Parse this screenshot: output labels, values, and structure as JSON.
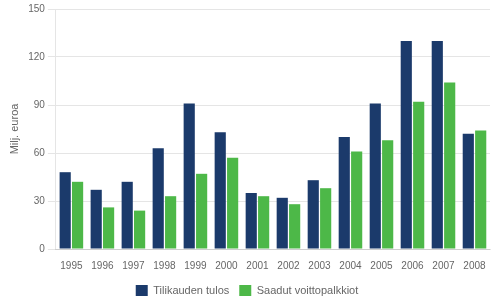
{
  "chart_data": {
    "type": "bar",
    "ylabel": "Milj. euroa",
    "categories": [
      "1995",
      "1996",
      "1997",
      "1998",
      "1999",
      "2000",
      "2001",
      "2002",
      "2003",
      "2004",
      "2005",
      "2006",
      "2007",
      "2008"
    ],
    "series": [
      {
        "name": "Tilikauden tulos",
        "color": "#1b3a6b",
        "values": [
          48,
          37,
          42,
          63,
          91,
          73,
          35,
          32,
          43,
          70,
          91,
          130,
          130,
          72
        ]
      },
      {
        "name": "Saadut voittopalkkiot",
        "color": "#4db848",
        "values": [
          42,
          26,
          24,
          33,
          47,
          57,
          33,
          28,
          38,
          61,
          68,
          92,
          104,
          74
        ]
      }
    ],
    "ylim": [
      0,
      150
    ],
    "yticks": [
      0,
      30,
      60,
      90,
      120,
      150
    ],
    "grid": true,
    "legend": "bottom"
  }
}
